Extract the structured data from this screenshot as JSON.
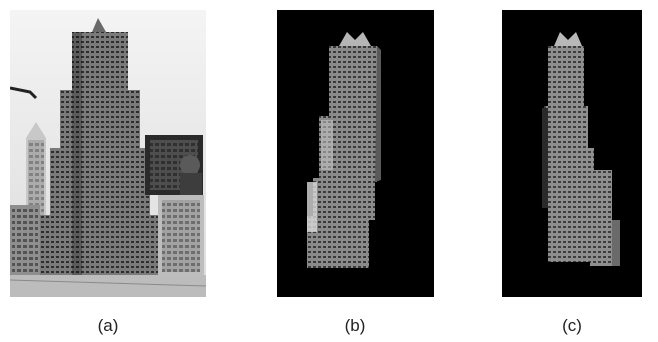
{
  "figure": {
    "panels": [
      {
        "label": "(a)",
        "content": "photo",
        "background": "#f2f2f2"
      },
      {
        "label": "(b)",
        "content": "segmented-building",
        "background": "#000000"
      },
      {
        "label": "(c)",
        "content": "segmented-building-rotated",
        "background": "#000000"
      }
    ]
  }
}
